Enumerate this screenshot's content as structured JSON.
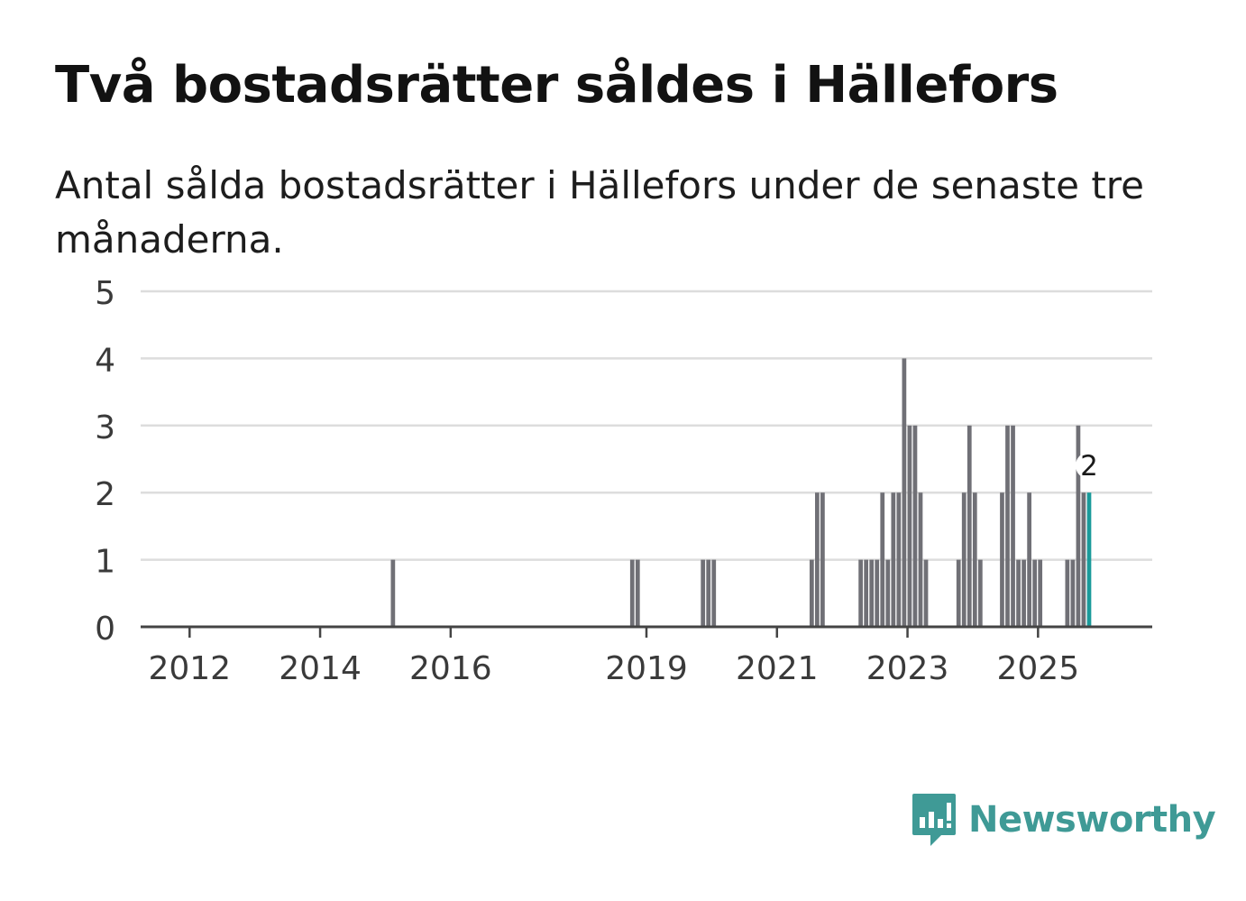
{
  "title": "Två bostadsrätter såldes i Hällefors",
  "subtitle": "Antal sålda bostadsrätter i Hällefors under de senaste tre månaderna.",
  "brand": {
    "name": "Newsworthy",
    "color": "#3f9a96"
  },
  "colors": {
    "bar": "#707076",
    "highlight": "#1a9a9a",
    "grid": "#dddddd",
    "axis": "#444444",
    "text": "#3a3a3a"
  },
  "chart_data": {
    "type": "bar",
    "title": "Två bostadsrätter såldes i Hällefors",
    "xlabel": "",
    "ylabel": "",
    "ylim": [
      0,
      5
    ],
    "yticks": [
      "0",
      "1",
      "2",
      "3",
      "4",
      "5"
    ],
    "xticks": [
      {
        "label": "2012",
        "year": 2012
      },
      {
        "label": "2014",
        "year": 2014
      },
      {
        "label": "2016",
        "year": 2016
      },
      {
        "label": "2019",
        "year": 2019
      },
      {
        "label": "2021",
        "year": 2021
      },
      {
        "label": "2023",
        "year": 2023
      },
      {
        "label": "2025",
        "year": 2025
      }
    ],
    "x_range": [
      "2011-04",
      "2026-10"
    ],
    "grid": true,
    "series": [
      {
        "name": "Antal sålda bostadsrätter",
        "points": [
          {
            "x": "2015-02",
            "y": 1
          },
          {
            "x": "2018-10",
            "y": 1
          },
          {
            "x": "2018-11",
            "y": 1
          },
          {
            "x": "2019-11",
            "y": 1
          },
          {
            "x": "2019-12",
            "y": 1
          },
          {
            "x": "2020-01",
            "y": 1
          },
          {
            "x": "2021-07",
            "y": 1
          },
          {
            "x": "2021-08",
            "y": 2
          },
          {
            "x": "2021-09",
            "y": 2
          },
          {
            "x": "2022-04",
            "y": 1
          },
          {
            "x": "2022-05",
            "y": 1
          },
          {
            "x": "2022-06",
            "y": 1
          },
          {
            "x": "2022-07",
            "y": 1
          },
          {
            "x": "2022-08",
            "y": 2
          },
          {
            "x": "2022-09",
            "y": 1
          },
          {
            "x": "2022-10",
            "y": 2
          },
          {
            "x": "2022-11",
            "y": 2
          },
          {
            "x": "2022-12",
            "y": 4
          },
          {
            "x": "2023-01",
            "y": 3
          },
          {
            "x": "2023-02",
            "y": 3
          },
          {
            "x": "2023-03",
            "y": 2
          },
          {
            "x": "2023-04",
            "y": 1
          },
          {
            "x": "2023-10",
            "y": 1
          },
          {
            "x": "2023-11",
            "y": 2
          },
          {
            "x": "2023-12",
            "y": 3
          },
          {
            "x": "2024-01",
            "y": 2
          },
          {
            "x": "2024-02",
            "y": 1
          },
          {
            "x": "2024-06",
            "y": 2
          },
          {
            "x": "2024-07",
            "y": 3
          },
          {
            "x": "2024-08",
            "y": 3
          },
          {
            "x": "2024-09",
            "y": 1
          },
          {
            "x": "2024-10",
            "y": 1
          },
          {
            "x": "2024-11",
            "y": 2
          },
          {
            "x": "2024-12",
            "y": 1
          },
          {
            "x": "2025-01",
            "y": 1
          },
          {
            "x": "2025-06",
            "y": 1
          },
          {
            "x": "2025-07",
            "y": 1
          },
          {
            "x": "2025-08",
            "y": 3
          },
          {
            "x": "2025-09",
            "y": 2
          },
          {
            "x": "2025-10",
            "y": 2,
            "highlight": true,
            "label": "2"
          }
        ]
      }
    ]
  }
}
